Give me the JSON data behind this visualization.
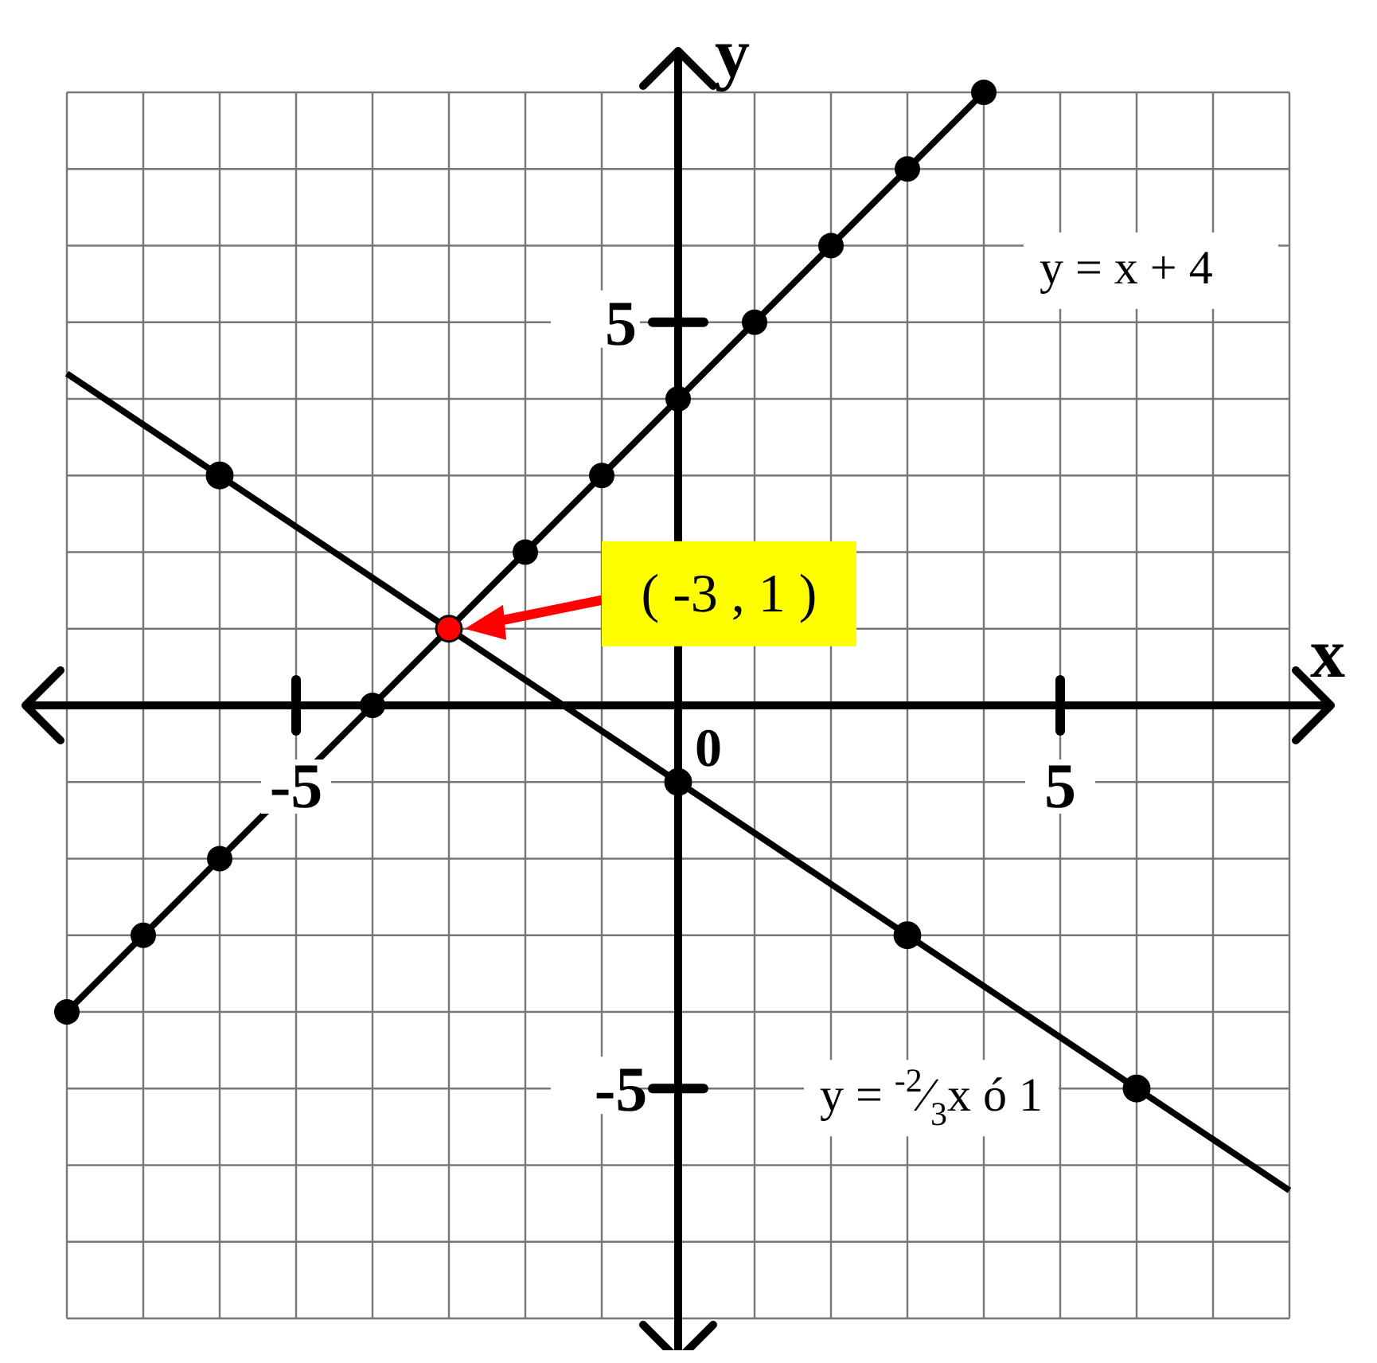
{
  "chart_data": {
    "type": "line",
    "xlabel": "x",
    "ylabel": "y",
    "xlim": [
      -8,
      8
    ],
    "ylim": [
      -8,
      8
    ],
    "xticks": [
      {
        "value": -8,
        "label": null
      },
      {
        "value": -7,
        "label": null
      },
      {
        "value": -6,
        "label": null
      },
      -5,
      {
        "value": -4,
        "label": null
      },
      {
        "value": -3,
        "label": null
      },
      {
        "value": -2,
        "label": null
      },
      {
        "value": -1,
        "label": null
      },
      {
        "value": 0,
        "label": null
      },
      {
        "value": 1,
        "label": null
      },
      {
        "value": 2,
        "label": null
      },
      {
        "value": 3,
        "label": null
      },
      {
        "value": 4,
        "label": null
      },
      5,
      {
        "value": 6,
        "label": null
      },
      {
        "value": 7,
        "label": null
      },
      {
        "value": 8,
        "label": null
      }
    ],
    "yticks": [
      {
        "value": -8,
        "label": null
      },
      {
        "value": -7,
        "label": null
      },
      {
        "value": -6,
        "label": null
      },
      -5,
      {
        "value": -4,
        "label": null
      },
      {
        "value": -3,
        "label": null
      },
      {
        "value": -2,
        "label": null
      },
      {
        "value": -1,
        "label": null
      },
      {
        "value": 0,
        "label": null
      },
      {
        "value": 1,
        "label": null
      },
      {
        "value": 2,
        "label": null
      },
      {
        "value": 3,
        "label": null
      },
      {
        "value": 4,
        "label": null
      },
      5,
      {
        "value": 6,
        "label": null
      },
      {
        "value": 7,
        "label": null
      },
      {
        "value": 8,
        "label": null
      }
    ],
    "grid": true,
    "legend": false,
    "series": [
      {
        "name": "y = x + 4",
        "color": "#000000",
        "marker": "circle",
        "x": [
          -8,
          -7,
          -6,
          -4,
          -3,
          -2,
          -1,
          0,
          1,
          2,
          3,
          4
        ],
        "values": [
          -4,
          -3,
          -2,
          0,
          1,
          2,
          3,
          4,
          5,
          6,
          7,
          8
        ]
      },
      {
        "name": "y = $^{-2}$⁄$_{3}$x ó 1",
        "color": "#000000",
        "marker": "none",
        "x": [
          -8,
          8
        ],
        "values": [
          4.33,
          -6.33
        ]
      },
      {
        "type": "scatter",
        "color": "#000000",
        "marker": "circle",
        "x": [
          -6,
          0,
          3,
          6
        ],
        "values": [
          3,
          -1,
          -3,
          -5
        ]
      },
      {
        "type": "scatter",
        "color": "#ff0000",
        "marker": "circle",
        "x": [
          -3
        ],
        "values": [
          1
        ]
      }
    ],
    "annotations": [
      "( -3 , 1 )",
      "0"
    ]
  }
}
